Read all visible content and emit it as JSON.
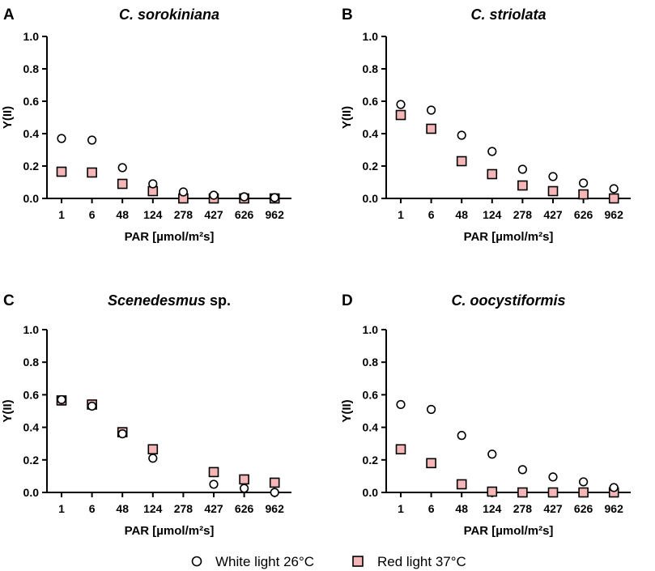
{
  "chart_data": [
    {
      "type": "scatter",
      "panel": "A",
      "title": "C. sorokiniana",
      "title_suffix": "",
      "xlabel": "PAR [µmol/m²s]",
      "ylabel": "Y(II)",
      "ylim": [
        0,
        1.0
      ],
      "yticks": [
        "0.0",
        "0.2",
        "0.4",
        "0.6",
        "0.8",
        "1.0"
      ],
      "categories": [
        "1",
        "6",
        "48",
        "124",
        "278",
        "427",
        "626",
        "962"
      ],
      "series": [
        {
          "name": "White light 26°C",
          "values": [
            0.37,
            0.36,
            0.19,
            0.09,
            0.04,
            0.02,
            0.01,
            0.005
          ]
        },
        {
          "name": "Red light 37°C",
          "values": [
            0.165,
            0.16,
            0.09,
            0.045,
            0.0,
            0.0,
            0.0,
            0.0
          ]
        }
      ]
    },
    {
      "type": "scatter",
      "panel": "B",
      "title": "C. striolata",
      "title_suffix": "",
      "xlabel": "PAR [µmol/m²s]",
      "ylabel": "Y(II)",
      "ylim": [
        0,
        1.0
      ],
      "yticks": [
        "0.0",
        "0.2",
        "0.4",
        "0.6",
        "0.8",
        "1.0"
      ],
      "categories": [
        "1",
        "6",
        "48",
        "124",
        "278",
        "427",
        "626",
        "962"
      ],
      "series": [
        {
          "name": "White light 26°C",
          "values": [
            0.58,
            0.545,
            0.39,
            0.29,
            0.18,
            0.135,
            0.095,
            0.06
          ]
        },
        {
          "name": "Red light 37°C",
          "values": [
            0.515,
            0.43,
            0.23,
            0.15,
            0.08,
            0.045,
            0.025,
            0.0
          ]
        }
      ]
    },
    {
      "type": "scatter",
      "panel": "C",
      "title": "Scenedesmus",
      "title_suffix": " sp.",
      "xlabel": "PAR [µmol/m²s]",
      "ylabel": "Y(II)",
      "ylim": [
        0,
        1.0
      ],
      "yticks": [
        "0.0",
        "0.2",
        "0.4",
        "0.6",
        "0.8",
        "1.0"
      ],
      "categories": [
        "1",
        "6",
        "48",
        "124",
        "278",
        "427",
        "626",
        "962"
      ],
      "series": [
        {
          "name": "White light 26°C",
          "values": [
            0.57,
            0.53,
            0.36,
            0.21,
            null,
            0.05,
            0.025,
            0.0
          ]
        },
        {
          "name": "Red light 37°C",
          "values": [
            0.565,
            0.54,
            0.37,
            0.265,
            null,
            0.125,
            0.08,
            0.06
          ]
        }
      ]
    },
    {
      "type": "scatter",
      "panel": "D",
      "title": "C. oocystiformis",
      "title_suffix": "",
      "xlabel": "PAR [µmol/m²s]",
      "ylabel": "Y(II)",
      "ylim": [
        0,
        1.0
      ],
      "yticks": [
        "0.0",
        "0.2",
        "0.4",
        "0.6",
        "0.8",
        "1.0"
      ],
      "categories": [
        "1",
        "6",
        "48",
        "124",
        "278",
        "427",
        "626",
        "962"
      ],
      "series": [
        {
          "name": "White light 26°C",
          "values": [
            0.54,
            0.51,
            0.35,
            0.235,
            0.14,
            0.095,
            0.065,
            0.03
          ]
        },
        {
          "name": "Red light 37°C",
          "values": [
            0.265,
            0.18,
            0.05,
            0.005,
            0.0,
            0.0,
            0.0,
            0.0
          ]
        }
      ]
    }
  ],
  "legend": {
    "white_label": "White light 26°C",
    "red_label": "Red light 37°C"
  },
  "colors": {
    "white_marker_fill": "#ffffff",
    "red_marker_fill": "#f4b6b6",
    "marker_stroke": "#000000"
  }
}
